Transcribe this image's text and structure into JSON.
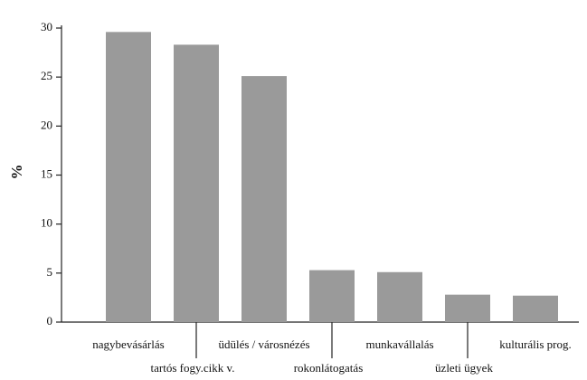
{
  "chart_data": {
    "type": "bar",
    "y_label": "%",
    "categories": [
      "nagybevásárlás",
      "tartós fogy.cikk v.",
      "üdülés / városnézés",
      "rokonlátogatás",
      "munkavállalás",
      "üzleti ügyek",
      "kulturális prog."
    ],
    "values": [
      29.6,
      28.3,
      25.1,
      5.3,
      5.1,
      2.8,
      2.7
    ],
    "color": "#9a9a9a",
    "ylim": [
      0,
      30
    ],
    "yticks": [
      0,
      5,
      10,
      15,
      20,
      25,
      30
    ],
    "grid": false
  }
}
